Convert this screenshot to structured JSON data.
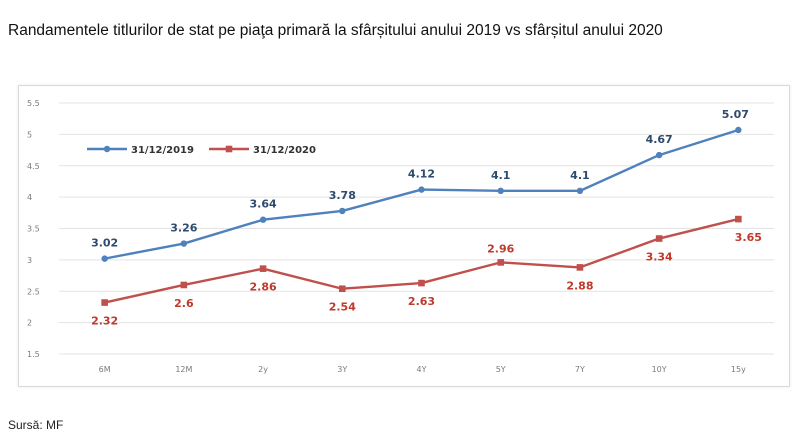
{
  "title": "Randamentele titlurilor de stat pe piaţa primară la sfârșitului anului  2019 vs sfârșitul anului 2020",
  "source": "Sursă: MF",
  "colors": {
    "series1": "#4f81bd",
    "series2": "#c0504d",
    "grid": "#e3e3e3"
  },
  "chart_data": {
    "type": "line",
    "title": "Randamentele titlurilor de stat pe piaţa primară la sfârșitului anului  2019 vs sfârșitul anului 2020",
    "xlabel": "",
    "ylabel": "",
    "categories": [
      "6M",
      "12M",
      "2y",
      "3Y",
      "4Y",
      "5Y",
      "7Y",
      "10Y",
      "15y"
    ],
    "ylim": [
      1.5,
      5.5
    ],
    "yticks": [
      "1.5",
      "2",
      "2.5",
      "3",
      "3.5",
      "4",
      "4.5",
      "5",
      "5.5"
    ],
    "grid": true,
    "legend_position": "top-left",
    "series": [
      {
        "name": "31/12/2019",
        "color": "#4f81bd",
        "values": [
          3.02,
          3.26,
          3.64,
          3.78,
          4.12,
          4.1,
          4.1,
          4.67,
          5.07
        ],
        "labels": [
          "3.02",
          "3.26",
          "3.64",
          "3.78",
          "4.12",
          "4.1",
          "4.1",
          "4.67",
          "5.07"
        ]
      },
      {
        "name": "31/12/2020",
        "color": "#c0504d",
        "values": [
          2.32,
          2.6,
          2.86,
          2.54,
          2.63,
          2.96,
          2.88,
          3.34,
          3.65
        ],
        "labels": [
          "2.32",
          "2.6",
          "2.86",
          "2.54",
          "2.63",
          "2.96",
          "2.88",
          "3.34",
          "3.65"
        ]
      }
    ]
  }
}
